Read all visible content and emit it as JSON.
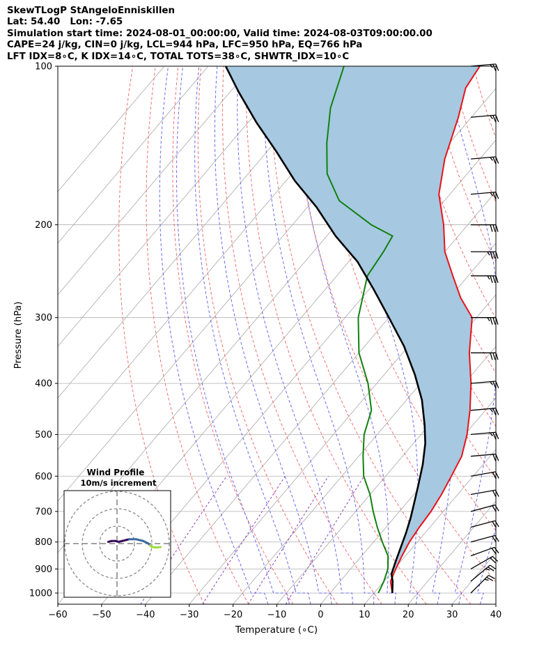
{
  "header": {
    "lines": [
      "SkewTLogP StAngeloEnniskillen",
      "Lat: 54.40   Lon: -7.65",
      "Simulation start time: 2024-08-01_00:00:00, Valid time: 2024-08-03T09:00:00.00",
      "CAPE=24 j/kg, CIN=0 j/kg, LCL=944 hPa, LFC=950 hPa, EQ=766 hPa",
      "LFT IDX=8∘C, K IDX=14∘C, TOTAL TOTS=38∘C, SHWTR_IDX=10∘C"
    ]
  },
  "chart_data": {
    "type": "line",
    "skew": "skew-T log-P",
    "xlabel": "Temperature (∘C)",
    "ylabel": "Pressure (hPa)",
    "xlim": [
      -60,
      40
    ],
    "ylim": [
      1050,
      100
    ],
    "x_ticks": [
      -60,
      -50,
      -40,
      -30,
      -20,
      -10,
      0,
      10,
      20,
      30,
      40
    ],
    "y_ticks": [
      100,
      200,
      300,
      400,
      500,
      600,
      700,
      800,
      900,
      1000
    ],
    "colors": {
      "temperature": "#e8121a",
      "dewpoint": "#108010",
      "parcel": "#000000",
      "cape_fill": "#a6c8e0",
      "dry_adiabat": "#f07070",
      "moist_adiabat": "#6a6af0",
      "mixing_ratio": "#8a3ab9",
      "isotherm": "#a8a8a8",
      "hodograph_low": "#3b0a5a",
      "hodograph_mid": "#3a6aa0",
      "hodograph_high": "#a0dc40"
    },
    "series": [
      {
        "key": "temperature",
        "points": [
          [
            14.2,
            1000
          ],
          [
            11.5,
            950
          ],
          [
            10.3,
            900
          ],
          [
            9.2,
            850
          ],
          [
            8.2,
            800
          ],
          [
            7.6,
            750
          ],
          [
            7.2,
            700
          ],
          [
            6.3,
            650
          ],
          [
            5,
            600
          ],
          [
            3.5,
            550
          ],
          [
            0.5,
            500
          ],
          [
            -3.5,
            450
          ],
          [
            -8.5,
            400
          ],
          [
            -14.8,
            350
          ],
          [
            -21,
            300
          ],
          [
            -27.5,
            275
          ],
          [
            -33.5,
            250
          ],
          [
            -40,
            225
          ],
          [
            -45.5,
            200
          ],
          [
            -52.5,
            175
          ],
          [
            -58,
            150
          ],
          [
            -63,
            125
          ],
          [
            -67,
            110
          ],
          [
            -68,
            100
          ]
        ]
      },
      {
        "key": "dewpoint",
        "points": [
          [
            11,
            1000
          ],
          [
            10,
            950
          ],
          [
            8.5,
            900
          ],
          [
            6,
            850
          ],
          [
            2,
            800
          ],
          [
            -2,
            750
          ],
          [
            -6,
            700
          ],
          [
            -10,
            650
          ],
          [
            -15,
            600
          ],
          [
            -19,
            550
          ],
          [
            -23,
            500
          ],
          [
            -26,
            450
          ],
          [
            -32,
            400
          ],
          [
            -40,
            350
          ],
          [
            -47,
            300
          ],
          [
            -53,
            250
          ],
          [
            -54,
            225
          ],
          [
            -55,
            210
          ],
          [
            -62,
            200
          ],
          [
            -74,
            180
          ],
          [
            -82,
            160
          ],
          [
            -88,
            140
          ],
          [
            -94,
            120
          ],
          [
            -99,
            100
          ]
        ]
      },
      {
        "key": "parcel",
        "points": [
          [
            14.2,
            1000
          ],
          [
            12,
            950
          ],
          [
            10.3,
            920
          ],
          [
            8.8,
            870
          ],
          [
            7.3,
            820
          ],
          [
            5.7,
            770
          ],
          [
            3.8,
            720
          ],
          [
            1.5,
            670
          ],
          [
            -1,
            620
          ],
          [
            -3.8,
            570
          ],
          [
            -7.3,
            520
          ],
          [
            -11,
            480
          ],
          [
            -16.5,
            430
          ],
          [
            -23,
            385
          ],
          [
            -31,
            340
          ],
          [
            -40,
            300
          ],
          [
            -49,
            265
          ],
          [
            -58,
            235
          ],
          [
            -68,
            210
          ],
          [
            -78,
            185
          ],
          [
            -88,
            165
          ],
          [
            -98,
            145
          ],
          [
            -108,
            128
          ],
          [
            -118,
            112
          ],
          [
            -126,
            100
          ]
        ]
      }
    ],
    "wind_barbs": [
      {
        "pressure": 100,
        "speed_kt": 25,
        "dir_deg": 265
      },
      {
        "pressure": 125,
        "speed_kt": 25,
        "dir_deg": 265
      },
      {
        "pressure": 150,
        "speed_kt": 25,
        "dir_deg": 265
      },
      {
        "pressure": 175,
        "speed_kt": 25,
        "dir_deg": 265
      },
      {
        "pressure": 200,
        "speed_kt": 30,
        "dir_deg": 270
      },
      {
        "pressure": 225,
        "speed_kt": 35,
        "dir_deg": 270
      },
      {
        "pressure": 250,
        "speed_kt": 35,
        "dir_deg": 270
      },
      {
        "pressure": 300,
        "speed_kt": 35,
        "dir_deg": 270
      },
      {
        "pressure": 350,
        "speed_kt": 30,
        "dir_deg": 270
      },
      {
        "pressure": 400,
        "speed_kt": 25,
        "dir_deg": 265
      },
      {
        "pressure": 450,
        "speed_kt": 25,
        "dir_deg": 265
      },
      {
        "pressure": 500,
        "speed_kt": 25,
        "dir_deg": 265
      },
      {
        "pressure": 550,
        "speed_kt": 20,
        "dir_deg": 265
      },
      {
        "pressure": 600,
        "speed_kt": 20,
        "dir_deg": 260
      },
      {
        "pressure": 650,
        "speed_kt": 20,
        "dir_deg": 260
      },
      {
        "pressure": 700,
        "speed_kt": 20,
        "dir_deg": 255
      },
      {
        "pressure": 750,
        "speed_kt": 20,
        "dir_deg": 255
      },
      {
        "pressure": 800,
        "speed_kt": 20,
        "dir_deg": 255
      },
      {
        "pressure": 850,
        "speed_kt": 20,
        "dir_deg": 250
      },
      {
        "pressure": 900,
        "speed_kt": 20,
        "dir_deg": 240
      },
      {
        "pressure": 950,
        "speed_kt": 25,
        "dir_deg": 230
      },
      {
        "pressure": 1000,
        "speed_kt": 25,
        "dir_deg": 225
      }
    ],
    "hodograph": {
      "title": "Wind Profile",
      "subtitle": "10m/s increment",
      "ring_spacing_ms": 10,
      "ring_count": 3,
      "points": [
        [
          -5,
          1
        ],
        [
          -3,
          1.5
        ],
        [
          -1,
          1.5
        ],
        [
          1,
          1
        ],
        [
          3,
          1.5
        ],
        [
          5,
          2
        ],
        [
          7,
          2.5
        ],
        [
          9,
          2.5
        ],
        [
          11,
          2.5
        ],
        [
          13,
          2
        ],
        [
          15,
          1.5
        ],
        [
          16,
          1
        ],
        [
          17,
          0.5
        ],
        [
          18,
          0
        ],
        [
          19,
          -1
        ],
        [
          20,
          -2
        ],
        [
          21,
          -2
        ],
        [
          22,
          -2.2
        ],
        [
          23,
          -2.2
        ],
        [
          25,
          -2
        ]
      ]
    }
  }
}
